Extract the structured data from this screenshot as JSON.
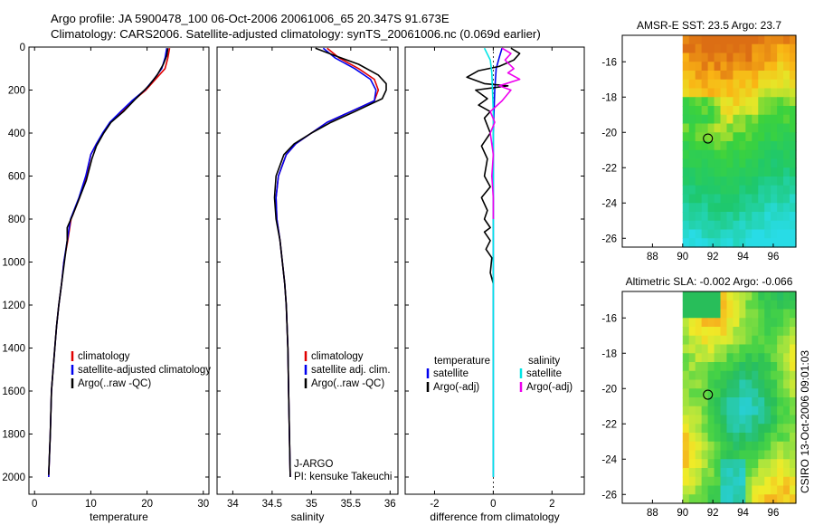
{
  "header": {
    "title_line1": "Argo profile: JA 5900478_100 06-Oct-2006 20061006_65 20.347S 91.673E",
    "title_line2": "Climatology: CARS2006. Satellite-adjusted climatology: synTS_20061006.nc (0.069d earlier)"
  },
  "footer": {
    "credit": "CSIRO 13-Oct-2006 09:01:03"
  },
  "colors": {
    "red": "#e00000",
    "blue": "#0000ee",
    "black": "#000000",
    "cyan": "#00e5e5",
    "magenta": "#ee00ee"
  },
  "chart_data": [
    {
      "type": "line",
      "panel": "temperature",
      "xlabel": "temperature",
      "xlim": [
        -1,
        31
      ],
      "ylim": [
        0,
        2080
      ],
      "xticks": [
        0,
        10,
        20,
        30
      ],
      "yticks": [
        0,
        200,
        400,
        600,
        800,
        1000,
        1200,
        1400,
        1600,
        1800,
        2000
      ],
      "legend": [
        {
          "label": "climatology",
          "color": "#e00000"
        },
        {
          "label": "satellite-adjusted climatology",
          "color": "#0000ee"
        },
        {
          "label": "Argo(..raw -QC)",
          "color": "#000000"
        }
      ],
      "series": [
        {
          "name": "climatology",
          "color": "#e00000",
          "points": [
            [
              24,
              5
            ],
            [
              23.7,
              50
            ],
            [
              23.2,
              100
            ],
            [
              21.5,
              150
            ],
            [
              19.8,
              200
            ],
            [
              17.5,
              250
            ],
            [
              15.5,
              300
            ],
            [
              13.5,
              350
            ],
            [
              12.2,
              400
            ],
            [
              11,
              450
            ],
            [
              10,
              500
            ],
            [
              9.2,
              600
            ],
            [
              8,
              700
            ],
            [
              6.5,
              800
            ],
            [
              5.9,
              900
            ],
            [
              5.2,
              1000
            ],
            [
              4.8,
              1100
            ],
            [
              4.3,
              1200
            ],
            [
              3.9,
              1300
            ],
            [
              3.6,
              1400
            ],
            [
              3.3,
              1500
            ],
            [
              3,
              1600
            ],
            [
              2.8,
              1800
            ],
            [
              2.5,
              2000
            ]
          ]
        },
        {
          "name": "satellite-adjusted climatology",
          "color": "#0000ee",
          "points": [
            [
              23.5,
              5
            ],
            [
              23.2,
              50
            ],
            [
              22.6,
              100
            ],
            [
              21.2,
              150
            ],
            [
              19.6,
              200
            ],
            [
              17.3,
              250
            ],
            [
              15.3,
              300
            ],
            [
              13.4,
              350
            ],
            [
              12.1,
              400
            ],
            [
              11,
              450
            ],
            [
              10,
              500
            ],
            [
              9.1,
              600
            ],
            [
              7.9,
              700
            ],
            [
              6.4,
              800
            ],
            [
              5.8,
              900
            ],
            [
              5.2,
              1000
            ],
            [
              4.8,
              1100
            ],
            [
              4.3,
              1200
            ],
            [
              3.9,
              1300
            ],
            [
              3.6,
              1400
            ],
            [
              3.3,
              1500
            ],
            [
              3,
              1600
            ],
            [
              2.8,
              1800
            ],
            [
              2.5,
              2000
            ]
          ]
        },
        {
          "name": "Argo(..raw -QC)",
          "color": "#000000",
          "points": [
            [
              23.7,
              5
            ],
            [
              23.5,
              40
            ],
            [
              22.9,
              80
            ],
            [
              21.8,
              130
            ],
            [
              20.3,
              180
            ],
            [
              18,
              240
            ],
            [
              15.8,
              300
            ],
            [
              13.6,
              350
            ],
            [
              12.3,
              400
            ],
            [
              11,
              460
            ],
            [
              10.2,
              520
            ],
            [
              9.2,
              620
            ],
            [
              8,
              700
            ],
            [
              6.8,
              780
            ],
            [
              5.8,
              840
            ],
            [
              5.8,
              900
            ],
            [
              5.3,
              1000
            ],
            [
              4.8,
              1100
            ],
            [
              4.3,
              1200
            ],
            [
              3.9,
              1300
            ],
            [
              3.6,
              1400
            ],
            [
              3.3,
              1500
            ],
            [
              3,
              1600
            ],
            [
              2.8,
              1800
            ],
            [
              2.5,
              1990
            ]
          ]
        }
      ]
    },
    {
      "type": "line",
      "panel": "salinity",
      "xlabel": "salinity",
      "xlim": [
        33.8,
        36.1
      ],
      "ylim": [
        0,
        2080
      ],
      "xticks": [
        34,
        34.5,
        35,
        35.5,
        36
      ],
      "yticks": [],
      "legend": [
        {
          "label": "climatology",
          "color": "#e00000"
        },
        {
          "label": "satellite adj. clim.",
          "color": "#0000ee"
        },
        {
          "label": "Argo(..raw -QC)",
          "color": "#000000"
        }
      ],
      "annotation": [
        "J-ARGO",
        "PI: kensuke Takeuchi"
      ],
      "series": [
        {
          "name": "climatology",
          "color": "#e00000",
          "points": [
            [
              35.2,
              5
            ],
            [
              35.35,
              50
            ],
            [
              35.6,
              100
            ],
            [
              35.8,
              150
            ],
            [
              35.85,
              200
            ],
            [
              35.8,
              250
            ],
            [
              35.5,
              300
            ],
            [
              35.2,
              350
            ],
            [
              35,
              400
            ],
            [
              34.8,
              450
            ],
            [
              34.68,
              500
            ],
            [
              34.58,
              600
            ],
            [
              34.55,
              700
            ],
            [
              34.56,
              800
            ],
            [
              34.6,
              900
            ],
            [
              34.63,
              1000
            ],
            [
              34.66,
              1100
            ],
            [
              34.68,
              1200
            ],
            [
              34.7,
              1400
            ],
            [
              34.71,
              1600
            ],
            [
              34.72,
              1800
            ],
            [
              34.73,
              2000
            ]
          ]
        },
        {
          "name": "satellite adj. clim.",
          "color": "#0000ee",
          "points": [
            [
              35.15,
              5
            ],
            [
              35.3,
              50
            ],
            [
              35.55,
              100
            ],
            [
              35.75,
              150
            ],
            [
              35.82,
              200
            ],
            [
              35.8,
              250
            ],
            [
              35.5,
              300
            ],
            [
              35.2,
              350
            ],
            [
              35,
              400
            ],
            [
              34.8,
              450
            ],
            [
              34.68,
              500
            ],
            [
              34.58,
              600
            ],
            [
              34.55,
              700
            ],
            [
              34.56,
              800
            ],
            [
              34.6,
              900
            ],
            [
              34.63,
              1000
            ],
            [
              34.66,
              1100
            ],
            [
              34.68,
              1200
            ],
            [
              34.7,
              1400
            ],
            [
              34.71,
              1600
            ],
            [
              34.72,
              1800
            ],
            [
              34.73,
              2000
            ]
          ]
        },
        {
          "name": "Argo(..raw -QC)",
          "color": "#000000",
          "points": [
            [
              35.05,
              5
            ],
            [
              35.3,
              40
            ],
            [
              35.6,
              80
            ],
            [
              35.85,
              130
            ],
            [
              35.95,
              170
            ],
            [
              35.95,
              200
            ],
            [
              35.9,
              240
            ],
            [
              35.55,
              300
            ],
            [
              35.25,
              350
            ],
            [
              35,
              400
            ],
            [
              34.78,
              450
            ],
            [
              34.65,
              500
            ],
            [
              34.55,
              600
            ],
            [
              34.53,
              700
            ],
            [
              34.55,
              800
            ],
            [
              34.6,
              900
            ],
            [
              34.63,
              1000
            ],
            [
              34.66,
              1100
            ],
            [
              34.68,
              1200
            ],
            [
              34.7,
              1400
            ],
            [
              34.71,
              1600
            ],
            [
              34.72,
              1800
            ],
            [
              34.73,
              2000
            ]
          ]
        }
      ]
    },
    {
      "type": "line",
      "panel": "difference",
      "xlabel": "difference from climatology",
      "xlim": [
        -3,
        3.1
      ],
      "ylim": [
        0,
        2080
      ],
      "xticks": [
        -2,
        0,
        2
      ],
      "yticks": [],
      "legend_left_title": "temperature",
      "legend_right_title": "salinity",
      "legend": [
        {
          "label": "satellite",
          "color": "#0000ee"
        },
        {
          "label": "Argo(-adj)",
          "color": "#000000"
        },
        {
          "label": "satellite",
          "color": "#00e5e5"
        },
        {
          "label": "Argo(-adj)",
          "color": "#ee00ee"
        }
      ],
      "series": [
        {
          "name": "temperature satellite",
          "color": "#0000ee",
          "points": [
            [
              0.3,
              5
            ],
            [
              0.2,
              50
            ],
            [
              0.1,
              100
            ],
            [
              0.05,
              200
            ],
            [
              0,
              400
            ],
            [
              0,
              2000
            ]
          ]
        },
        {
          "name": "temperature Argo(-adj)",
          "color": "#000000",
          "points": [
            [
              0.6,
              5
            ],
            [
              0.9,
              30
            ],
            [
              0.7,
              60
            ],
            [
              0.2,
              90
            ],
            [
              -0.5,
              110
            ],
            [
              -0.9,
              140
            ],
            [
              -0.3,
              170
            ],
            [
              0.5,
              180
            ],
            [
              -0.6,
              200
            ],
            [
              -0.2,
              240
            ],
            [
              -0.5,
              270
            ],
            [
              -0.1,
              300
            ],
            [
              -0.3,
              330
            ],
            [
              -0.1,
              400
            ],
            [
              -0.4,
              460
            ],
            [
              -0.2,
              520
            ],
            [
              -0.3,
              600
            ],
            [
              -0.1,
              650
            ],
            [
              -0.4,
              700
            ],
            [
              -0.2,
              760
            ],
            [
              -0.3,
              800
            ],
            [
              -0.1,
              840
            ],
            [
              -0.3,
              860
            ],
            [
              -0.1,
              900
            ],
            [
              -0.25,
              940
            ],
            [
              -0.05,
              980
            ],
            [
              -0.1,
              1050
            ],
            [
              0,
              1100
            ]
          ]
        },
        {
          "name": "salinity satellite",
          "color": "#00e5e5",
          "points": [
            [
              -0.3,
              5
            ],
            [
              -0.1,
              60
            ],
            [
              -0.05,
              120
            ],
            [
              0,
              300
            ],
            [
              0,
              2000
            ]
          ]
        },
        {
          "name": "salinity Argo(-adj)",
          "color": "#ee00ee",
          "points": [
            [
              0.3,
              5
            ],
            [
              0.6,
              30
            ],
            [
              0.4,
              60
            ],
            [
              0.7,
              100
            ],
            [
              0.5,
              120
            ],
            [
              0.9,
              150
            ],
            [
              0.2,
              180
            ],
            [
              0.6,
              200
            ],
            [
              0.3,
              250
            ],
            [
              -0.1,
              300
            ],
            [
              0.05,
              350
            ],
            [
              -0.1,
              400
            ],
            [
              0,
              500
            ],
            [
              -0.05,
              600
            ],
            [
              0,
              700
            ],
            [
              0,
              800
            ]
          ]
        }
      ]
    },
    {
      "type": "heatmap",
      "panel": "sst_map",
      "title": "AMSR-E SST: 23.5 Argo: 23.7",
      "xlim": [
        86,
        97.5
      ],
      "ylim": [
        -26.5,
        -14.5
      ],
      "xticks": [
        88,
        90,
        92,
        94,
        96
      ],
      "yticks": [
        -16,
        -18,
        -20,
        -22,
        -24,
        -26
      ],
      "data_xlim": [
        90,
        97.5
      ],
      "marker": [
        91.673,
        -20.347
      ],
      "palette": "sst"
    },
    {
      "type": "heatmap",
      "panel": "sla_map",
      "title": "Altimetric SLA: -0.002 Argo: -0.066",
      "xlim": [
        86,
        97.5
      ],
      "ylim": [
        -26.5,
        -14.5
      ],
      "xticks": [
        88,
        90,
        92,
        94,
        96
      ],
      "yticks": [
        -16,
        -18,
        -20,
        -22,
        -24,
        -26
      ],
      "data_xlim": [
        90,
        97.5
      ],
      "marker": [
        91.673,
        -20.347
      ],
      "palette": "sla"
    }
  ]
}
